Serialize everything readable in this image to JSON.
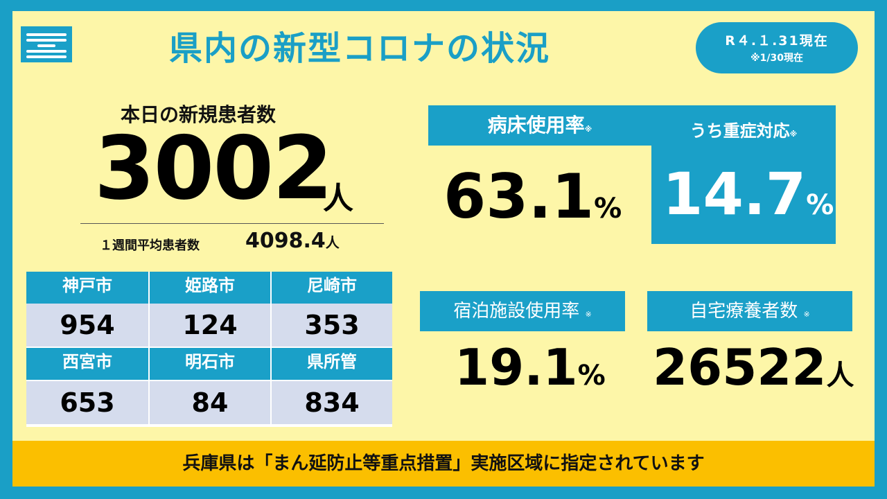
{
  "header": {
    "title": "県内の新型コロナの状況",
    "date_main": "R４.１.31現在",
    "date_note": "※1/30現在",
    "logo_icon": "hyogo-prefecture-emblem-icon"
  },
  "new_cases": {
    "label": "本日の新規患者数",
    "value": "3002",
    "unit": "人",
    "weekly_avg_label": "１週間平均患者数",
    "weekly_avg_value": "4098.4",
    "weekly_avg_unit": "人"
  },
  "cities": [
    {
      "name": "神戸市",
      "value": "954"
    },
    {
      "name": "姫路市",
      "value": "124"
    },
    {
      "name": "尼崎市",
      "value": "353"
    },
    {
      "name": "西宮市",
      "value": "653"
    },
    {
      "name": "明石市",
      "value": "84"
    },
    {
      "name": "県所管",
      "value": "834"
    }
  ],
  "stats": {
    "bed_usage": {
      "label": "病床使用率",
      "mark": "※",
      "value": "63.1",
      "unit": "%"
    },
    "severe": {
      "label": "うち重症対応",
      "mark": "※",
      "value": "14.7",
      "unit": "%"
    },
    "lodging": {
      "label": "宿泊施設使用率",
      "mark": "※",
      "value": "19.1",
      "unit": "%"
    },
    "home_care": {
      "label": "自宅療養者数",
      "mark": "※",
      "value": "26522",
      "unit": "人"
    }
  },
  "banner": {
    "text": "兵庫県は「まん延防止等重点措置」実施区域に指定されています"
  },
  "colors": {
    "frame": "#1a9fc6",
    "background": "#fdf6a8",
    "accent": "#1aa0c8",
    "banner": "#fbbf00",
    "table_cell": "#d5dced"
  }
}
